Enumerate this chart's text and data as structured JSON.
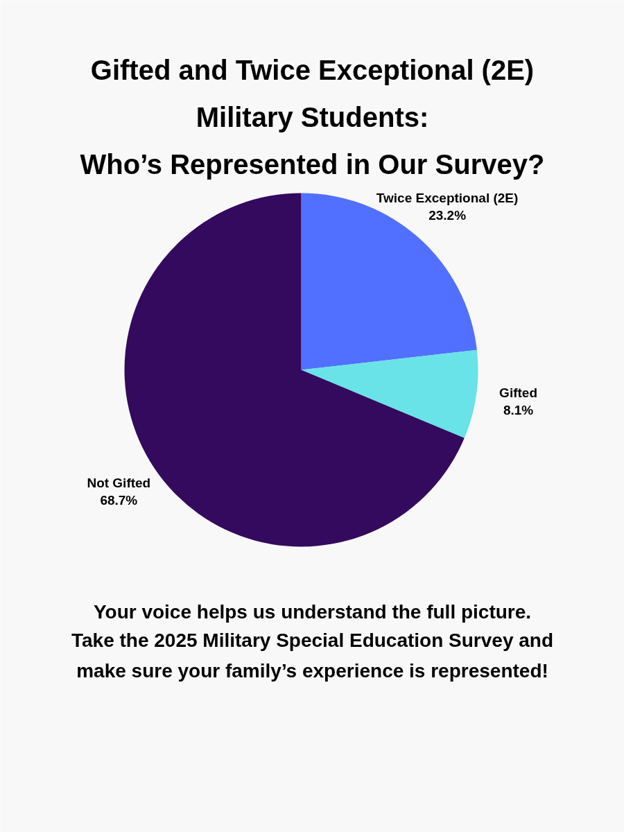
{
  "chart_data": {
    "type": "pie",
    "title": "Gifted and Twice Exceptional (2E)\nMilitary Students:\nWho’s Represented in Our Survey?",
    "categories": [
      "Twice Exceptional (2E)",
      "Gifted",
      "Not Gifted"
    ],
    "values": [
      23.2,
      8.1,
      68.7
    ],
    "colors": [
      "#5170ff",
      "#69e3e8",
      "#330a5e"
    ],
    "value_labels": [
      "23.2%",
      "8.1%",
      "68.7%"
    ],
    "annotations": [
      "Your voice helps us understand the full picture.",
      "Take the 2025 Military Special Education Survey and\nmake sure your family’s experience is represented!"
    ]
  }
}
